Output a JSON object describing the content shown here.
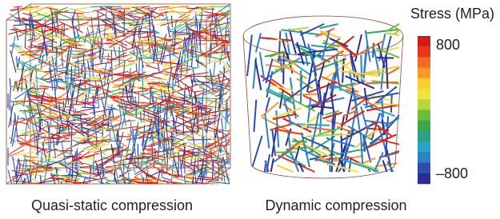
{
  "panels": [
    {
      "caption": "Quasi-static compression"
    },
    {
      "caption": "Dynamic compression"
    }
  ],
  "colorbar": {
    "title": "Stress (MPa)",
    "range": [
      -800,
      800
    ],
    "ticks": [
      800,
      {
        "value": -800,
        "label": "–800"
      }
    ],
    "colors": [
      "#d7191c",
      "#e8361e",
      "#f06a22",
      "#f79a2a",
      "#fccd35",
      "#f0e43c",
      "#b8d63a",
      "#6cbd3c",
      "#3ea650",
      "#2ca08a",
      "#27a6c8",
      "#2f7fc4",
      "#2f4fae",
      "#2b2d8f"
    ]
  }
}
